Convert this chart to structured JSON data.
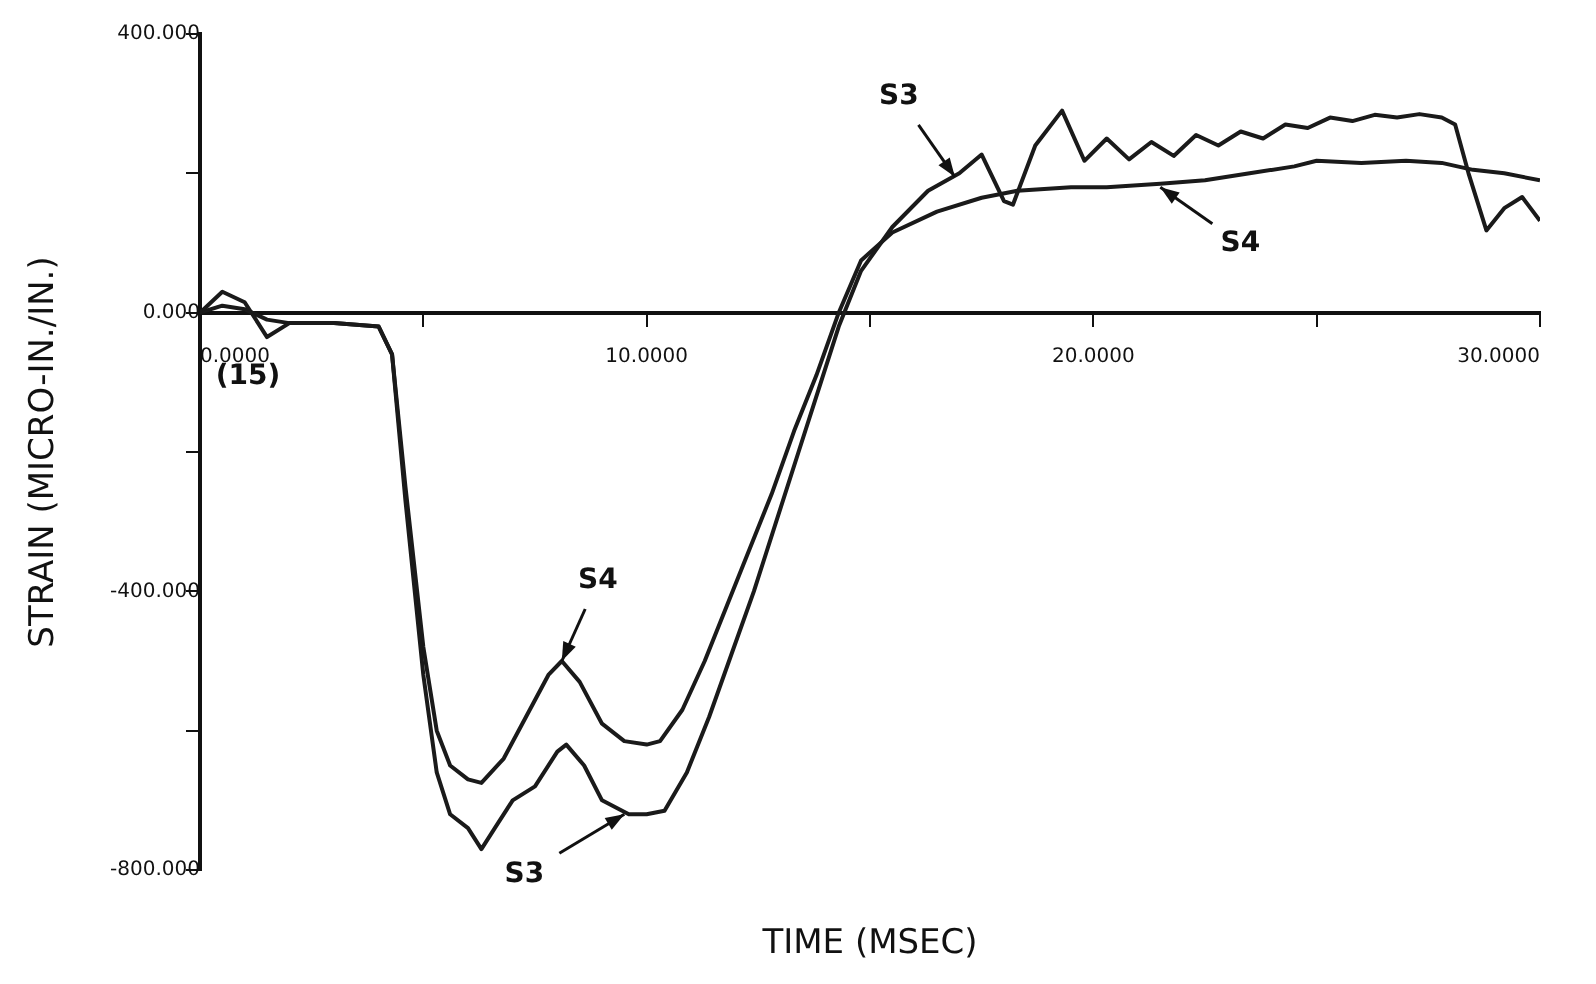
{
  "chart_data": {
    "type": "line",
    "xlabel": "TIME (MSEC)",
    "ylabel": "STRAIN (MICRO-IN./IN.)",
    "xlim": [
      0,
      30
    ],
    "ylim": [
      -800,
      400
    ],
    "xticks": [
      {
        "value": 0,
        "label": "0.0000"
      },
      {
        "value": 5,
        "label": null
      },
      {
        "value": 10,
        "label": "10.0000"
      },
      {
        "value": 15,
        "label": null
      },
      {
        "value": 20,
        "label": "20.0000"
      },
      {
        "value": 25,
        "label": null
      },
      {
        "value": 30,
        "label": "30.0000"
      }
    ],
    "yticks": [
      {
        "value": -800,
        "label": "-800.000"
      },
      {
        "value": -600,
        "label": null
      },
      {
        "value": -400,
        "label": "-400.000"
      },
      {
        "value": -200,
        "label": null
      },
      {
        "value": 0,
        "label": "0.000"
      },
      {
        "value": 200,
        "label": null
      },
      {
        "value": 400,
        "label": "400.000"
      }
    ],
    "grid": false,
    "legend": false,
    "marker": "none",
    "line_style": "solid",
    "series": [
      {
        "color": "#1a1a1a",
        "x": [
          0,
          0.5,
          1,
          1.5,
          2,
          3,
          4,
          4.3,
          4.6,
          5,
          5.3,
          5.6,
          6,
          6.3,
          6.6,
          7,
          7.5,
          8,
          8.2,
          8.6,
          9,
          9.6,
          10,
          10.4,
          10.9,
          11.4,
          11.9,
          12.4,
          12.9,
          13.4,
          13.9,
          14.3,
          14.8,
          15.5,
          16.3,
          17,
          17.5,
          18,
          18.2,
          18.7,
          19.3,
          19.8,
          20.3,
          20.8,
          21.3,
          21.8,
          22.3,
          22.8,
          23.3,
          23.8,
          24.3,
          24.8,
          25.3,
          25.8,
          26.3,
          26.8,
          27.3,
          27.8,
          28.1,
          28.4,
          28.8,
          29.2,
          29.6,
          30
        ],
        "values": [
          0,
          30,
          15,
          -35,
          -15,
          -15,
          -20,
          -60,
          -270,
          -520,
          -660,
          -720,
          -740,
          -770,
          -740,
          -700,
          -680,
          -630,
          -620,
          -650,
          -700,
          -720,
          -720,
          -715,
          -660,
          -580,
          -490,
          -400,
          -300,
          -200,
          -100,
          -20,
          60,
          123,
          175,
          200,
          227,
          160,
          155,
          240,
          290,
          218,
          250,
          220,
          245,
          225,
          255,
          240,
          260,
          250,
          270,
          265,
          280,
          275,
          284,
          280,
          285,
          280,
          270,
          200,
          118,
          150,
          166,
          132
        ]
      },
      {
        "color": "#1a1a1a",
        "x": [
          0,
          0.5,
          1,
          1.5,
          2,
          3,
          4,
          4.3,
          4.6,
          5,
          5.3,
          5.6,
          6,
          6.3,
          6.8,
          7.3,
          7.8,
          8.1,
          8.5,
          9,
          9.5,
          10,
          10.3,
          10.8,
          11.3,
          11.8,
          12.3,
          12.8,
          13.3,
          13.8,
          14.3,
          14.8,
          15.5,
          16.5,
          17.5,
          18.3,
          19.5,
          20.3,
          21.5,
          22.5,
          23.5,
          24.5,
          25,
          26,
          27,
          27.8,
          28.5,
          29.2,
          30
        ],
        "values": [
          0,
          10,
          5,
          -10,
          -15,
          -15,
          -20,
          -60,
          -250,
          -480,
          -600,
          -650,
          -670,
          -675,
          -640,
          -580,
          -520,
          -500,
          -530,
          -590,
          -615,
          -620,
          -615,
          -570,
          -500,
          -420,
          -340,
          -260,
          -170,
          -90,
          0,
          75,
          115,
          145,
          165,
          175,
          180,
          180,
          185,
          190,
          200,
          210,
          218,
          215,
          218,
          215,
          205,
          200,
          190
        ]
      }
    ],
    "annotations": [
      {
        "text": "S3",
        "x": 16.9,
        "y": 195
      },
      {
        "text": "S4",
        "x": 21.5,
        "y": 180
      },
      {
        "text": "S4",
        "x": 8.1,
        "y": -500
      },
      {
        "text": "S3",
        "x": 9.5,
        "y": -720
      },
      "(15)"
    ]
  }
}
